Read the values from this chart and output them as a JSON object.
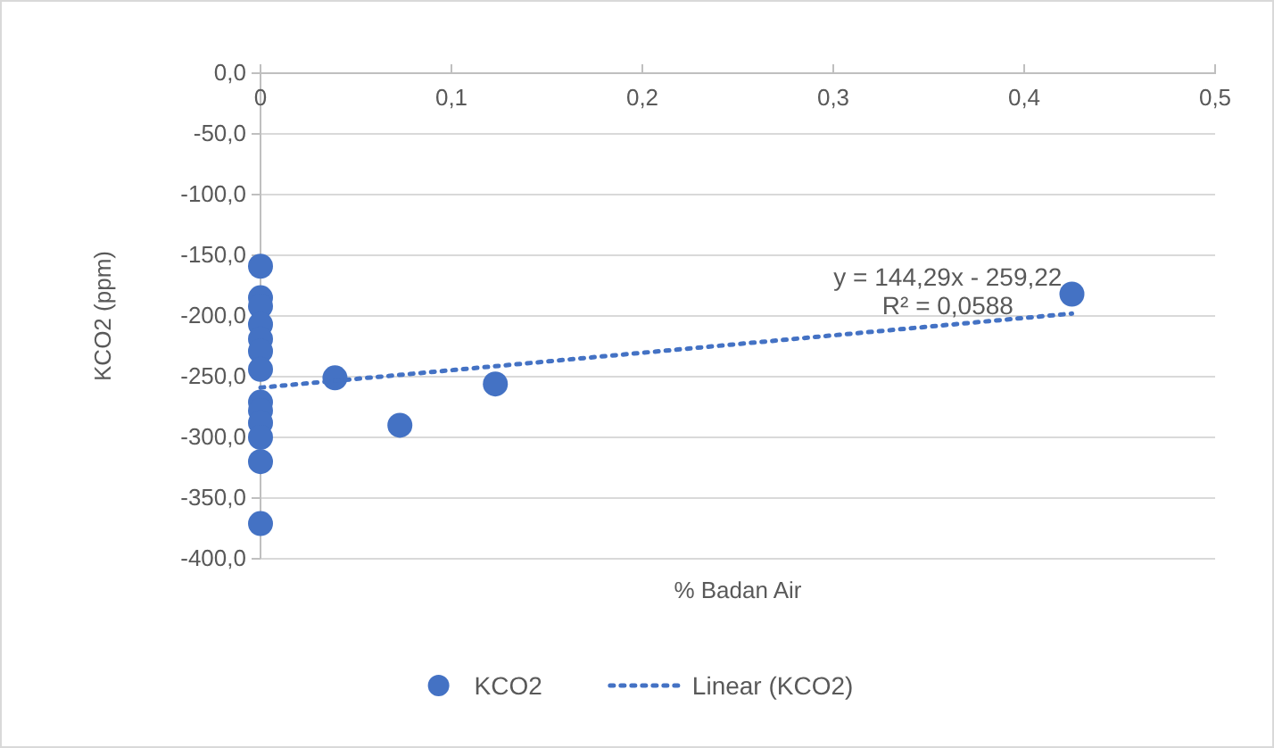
{
  "chart_data": {
    "type": "scatter",
    "xlabel": "% Badan Air",
    "ylabel": "KCO2 (ppm)",
    "xlim": [
      0,
      0.5
    ],
    "xticks": [
      {
        "value": 0,
        "label": "0"
      },
      {
        "value": 0.1,
        "label": "0,1"
      },
      {
        "value": 0.2,
        "label": "0,2"
      },
      {
        "value": 0.3,
        "label": "0,3"
      },
      {
        "value": 0.4,
        "label": "0,4"
      },
      {
        "value": 0.5,
        "label": "0,5"
      }
    ],
    "ylim": [
      -400,
      0
    ],
    "yticks": [
      {
        "value": 0,
        "label": "0,0"
      },
      {
        "value": -50,
        "label": "-50,0"
      },
      {
        "value": -100,
        "label": "-100,0"
      },
      {
        "value": -150,
        "label": "-150,0"
      },
      {
        "value": -200,
        "label": "-200,0"
      },
      {
        "value": -250,
        "label": "-250,0"
      },
      {
        "value": -300,
        "label": "-300,0"
      },
      {
        "value": -350,
        "label": "-350,0"
      },
      {
        "value": -400,
        "label": "-400,0"
      }
    ],
    "grid": "y",
    "legend": "bottom",
    "series": [
      {
        "name": "KCO2",
        "type": "scatter",
        "marker": "circle",
        "color": "#4472c4",
        "x": [
          0,
          0,
          0,
          0,
          0,
          0,
          0,
          0,
          0,
          0,
          0,
          0,
          0,
          0.039,
          0.073,
          0.123,
          0.425
        ],
        "values": [
          -159,
          -185,
          -192,
          -207,
          -219,
          -229,
          -244,
          -271,
          -278,
          -288,
          -300,
          -320,
          -371,
          -251,
          -290,
          -256,
          -182
        ]
      },
      {
        "name": "Linear (KCO2)",
        "type": "line",
        "line_style": "dotted",
        "marker": "none",
        "color": "#4472c4",
        "x": [
          0,
          0.425
        ],
        "values": [
          -259,
          -198
        ]
      }
    ],
    "annotations": [
      "y = 144,29x - 259,22",
      "R² = 0,0588"
    ]
  }
}
